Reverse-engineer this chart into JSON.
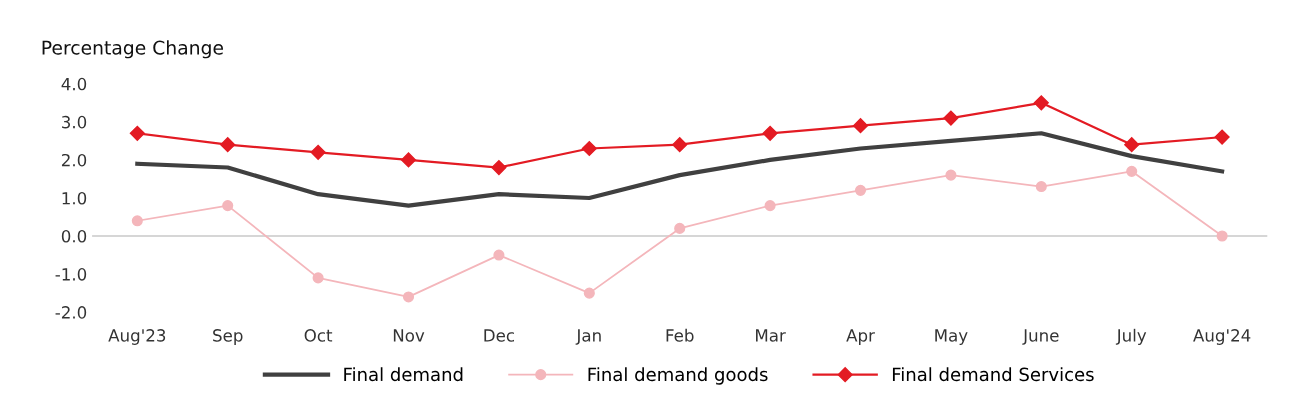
{
  "chart_data": {
    "type": "line",
    "title": "Percentage Change",
    "categories": [
      "Aug'23",
      "Sep",
      "Oct",
      "Nov",
      "Dec",
      "Jan",
      "Feb",
      "Mar",
      "Apr",
      "May",
      "June",
      "July",
      "Aug'24"
    ],
    "series": [
      {
        "name": "Final demand",
        "color": "#404040",
        "marker": "none",
        "values": [
          1.9,
          1.8,
          1.1,
          0.8,
          1.1,
          1.0,
          1.6,
          2.0,
          2.3,
          2.5,
          2.7,
          2.1,
          1.7
        ]
      },
      {
        "name": "Final demand goods",
        "color": "#f4b6bb",
        "marker": "circle",
        "values": [
          0.4,
          0.8,
          -1.1,
          -1.6,
          -0.5,
          -1.5,
          0.2,
          0.8,
          1.2,
          1.6,
          1.3,
          1.7,
          0.0
        ]
      },
      {
        "name": "Final demand Services",
        "color": "#e31b23",
        "marker": "diamond",
        "values": [
          2.7,
          2.4,
          2.2,
          2.0,
          1.8,
          2.3,
          2.4,
          2.7,
          2.9,
          3.1,
          3.5,
          2.4,
          2.6
        ]
      }
    ],
    "ylim": [
      -2.0,
      4.0
    ],
    "yticks": [
      {
        "value": -2,
        "label": "-2.0"
      },
      {
        "value": -1,
        "label": "-1.0"
      },
      {
        "value": 0,
        "label": "0.0"
      },
      {
        "value": 1,
        "label": "1.0"
      },
      {
        "value": 2,
        "label": "2.0"
      },
      {
        "value": 3,
        "label": "3.0"
      },
      {
        "value": 4,
        "label": "4.0"
      }
    ],
    "ref_lines": [
      {
        "axis": "y",
        "value": 0,
        "color": "#c8c8c8"
      }
    ],
    "grid": false,
    "legend": "bottom"
  }
}
